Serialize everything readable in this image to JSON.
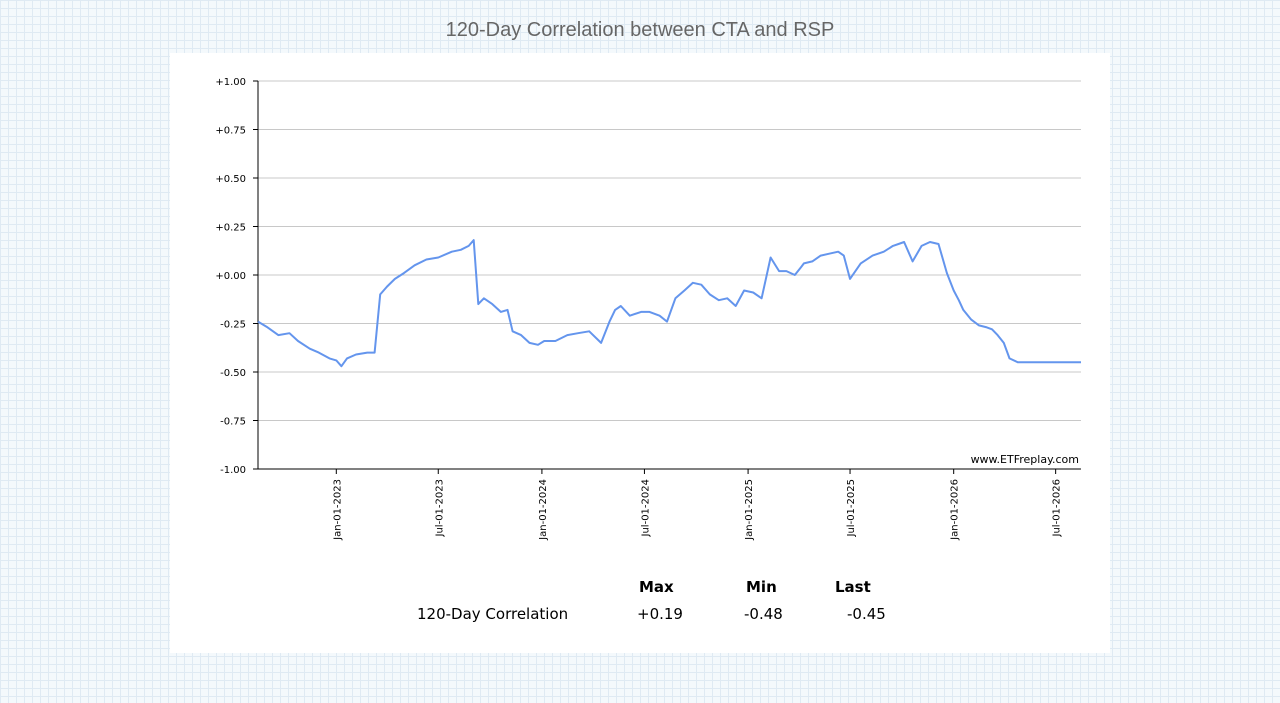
{
  "page": {
    "title": "120-Day Correlation between CTA and RSP"
  },
  "chart_data": {
    "type": "line",
    "title": "120-Day Correlation between CTA and RSP",
    "xlabel": "",
    "ylabel": "",
    "ylim": [
      -1.0,
      1.0
    ],
    "y_ticks": [
      "+1.00",
      "+0.75",
      "+0.50",
      "+0.25",
      "+0.00",
      "-0.25",
      "-0.50",
      "-0.75",
      "-1.00"
    ],
    "x_ticks": [
      "Jan-01-2023",
      "Jul-01-2023",
      "Jan-01-2024",
      "Jul-01-2024",
      "Jan-01-2025",
      "Jul-01-2025",
      "Jan-01-2026",
      "Jul-01-2026"
    ],
    "xlim": [
      "2022-08-15",
      "2026-08-15"
    ],
    "grid": true,
    "watermark": "www.ETFreplay.com",
    "series": [
      {
        "name": "120-Day Correlation",
        "color": "#6495ed",
        "x": [
          "2022-08-15",
          "2022-09-01",
          "2022-09-20",
          "2022-10-10",
          "2022-10-25",
          "2022-11-15",
          "2022-12-01",
          "2022-12-20",
          "2023-01-01",
          "2023-01-10",
          "2023-01-20",
          "2023-02-05",
          "2023-02-25",
          "2023-03-10",
          "2023-03-20",
          "2023-04-01",
          "2023-04-15",
          "2023-05-01",
          "2023-05-20",
          "2023-06-10",
          "2023-07-01",
          "2023-07-25",
          "2023-08-10",
          "2023-08-24",
          "2023-09-02",
          "2023-09-10",
          "2023-09-20",
          "2023-10-05",
          "2023-10-20",
          "2023-11-01",
          "2023-11-10",
          "2023-11-25",
          "2023-12-10",
          "2023-12-25",
          "2024-01-05",
          "2024-01-25",
          "2024-02-15",
          "2024-03-05",
          "2024-03-25",
          "2024-04-15",
          "2024-04-30",
          "2024-05-10",
          "2024-05-20",
          "2024-06-05",
          "2024-06-25",
          "2024-07-10",
          "2024-07-28",
          "2024-08-10",
          "2024-08-25",
          "2024-09-10",
          "2024-09-25",
          "2024-10-10",
          "2024-10-25",
          "2024-11-10",
          "2024-11-25",
          "2024-12-10",
          "2024-12-25",
          "2025-01-10",
          "2025-01-25",
          "2025-02-10",
          "2025-02-25",
          "2025-03-10",
          "2025-03-25",
          "2025-04-05",
          "2025-04-10",
          "2025-04-25",
          "2025-05-10",
          "2025-05-25",
          "2025-06-10",
          "2025-06-20",
          "2025-07-01",
          "2025-07-20",
          "2025-08-10",
          "2025-08-30",
          "2025-09-15",
          "2025-09-25",
          "2025-10-05",
          "2025-10-20",
          "2025-11-05",
          "2025-11-20",
          "2025-12-05",
          "2025-12-20",
          "2026-01-01",
          "2026-01-10",
          "2026-01-18",
          "2026-02-01",
          "2026-02-15",
          "2026-03-01",
          "2026-03-10",
          "2026-03-20",
          "2026-03-31",
          "2026-04-10",
          "2026-04-25",
          "2026-05-10",
          "2026-05-25",
          "2026-06-10",
          "2026-06-25",
          "2026-07-10",
          "2026-07-25",
          "2026-08-05",
          "2026-08-15"
        ],
        "values": [
          -0.24,
          -0.27,
          -0.31,
          -0.3,
          -0.34,
          -0.38,
          -0.4,
          -0.43,
          -0.44,
          -0.47,
          -0.43,
          -0.41,
          -0.4,
          -0.4,
          -0.1,
          -0.06,
          -0.02,
          0.01,
          0.05,
          0.08,
          0.09,
          0.12,
          0.13,
          0.15,
          0.18,
          -0.15,
          -0.12,
          -0.15,
          -0.19,
          -0.18,
          -0.29,
          -0.31,
          -0.35,
          -0.36,
          -0.34,
          -0.34,
          -0.31,
          -0.3,
          -0.29,
          -0.35,
          -0.24,
          -0.18,
          -0.16,
          -0.21,
          -0.19,
          -0.19,
          -0.21,
          -0.24,
          -0.12,
          -0.08,
          -0.04,
          -0.05,
          -0.1,
          -0.13,
          -0.12,
          -0.16,
          -0.08,
          -0.09,
          -0.12,
          0.09,
          0.02,
          0.02,
          0.0,
          0.04,
          0.06,
          0.07,
          0.1,
          0.11,
          0.12,
          0.1,
          -0.02,
          0.06,
          0.1,
          0.12,
          0.15,
          0.16,
          0.17,
          0.07,
          0.15,
          0.17,
          0.16,
          0.01,
          -0.08,
          -0.13,
          -0.18,
          -0.23,
          -0.26,
          -0.27,
          -0.28,
          -0.31,
          -0.35,
          -0.43,
          -0.45,
          -0.45,
          -0.45,
          -0.45,
          -0.45,
          -0.45,
          -0.45,
          -0.45,
          -0.45
        ]
      }
    ]
  },
  "stats": {
    "headers": [
      "Max",
      "Min",
      "Last"
    ],
    "row_label": "120-Day Correlation",
    "max": "+0.19",
    "min": "-0.48",
    "last": "-0.45"
  }
}
